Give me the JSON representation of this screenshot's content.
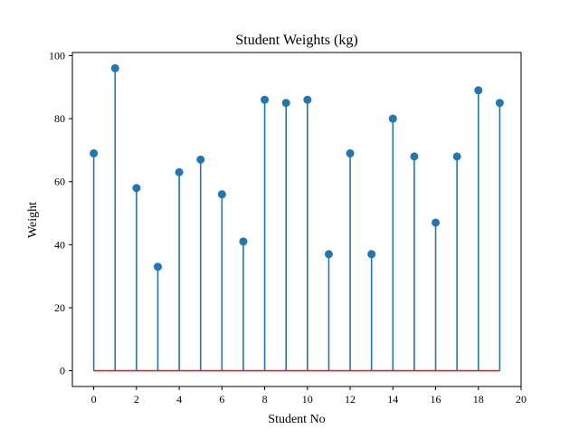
{
  "colors": {
    "stem": "#1f77b4",
    "marker": "#1f77b4",
    "baseline": "#d62728",
    "axis": "#000000"
  },
  "chart_data": {
    "type": "stem",
    "title": "Student Weights (kg)",
    "xlabel": "Student No",
    "ylabel": "Weight",
    "x": [
      0,
      1,
      2,
      3,
      4,
      5,
      6,
      7,
      8,
      9,
      10,
      11,
      12,
      13,
      14,
      15,
      16,
      17,
      18,
      19
    ],
    "values": [
      69,
      96,
      58,
      33,
      63,
      67,
      56,
      41,
      86,
      85,
      86,
      37,
      69,
      37,
      80,
      68,
      47,
      68,
      89,
      85
    ],
    "baseline": 0,
    "xlim": [
      -1,
      20
    ],
    "ylim": [
      -5,
      101
    ],
    "xticks": [
      0,
      2,
      4,
      6,
      8,
      10,
      12,
      14,
      16,
      18,
      20
    ],
    "yticks": [
      0,
      20,
      40,
      60,
      80,
      100
    ],
    "grid": false,
    "legend": "none"
  }
}
